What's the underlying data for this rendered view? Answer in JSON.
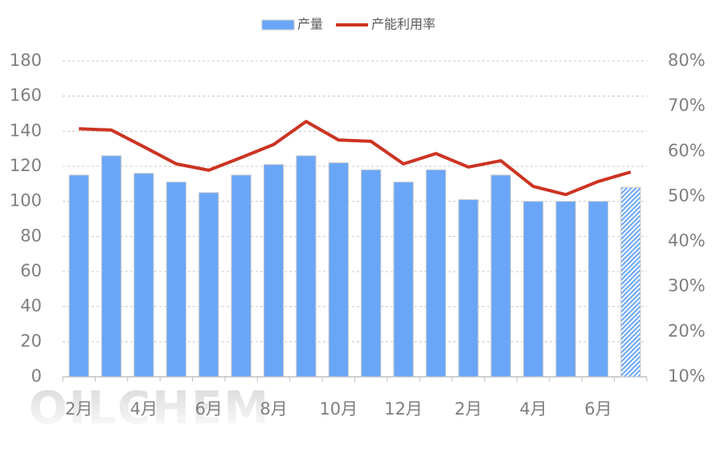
{
  "chart_data": {
    "type": "bar-line",
    "watermark": "OILCHEM",
    "categories": [
      "2月",
      null,
      "4月",
      null,
      "6月",
      null,
      "8月",
      null,
      "10月",
      null,
      "12月",
      null,
      "2月",
      null,
      "4月",
      null,
      "6月",
      null
    ],
    "series": [
      {
        "name": "产量",
        "type": "bar",
        "color": "#6aa6f8",
        "values": [
          115,
          126,
          116,
          111,
          105,
          115,
          121,
          126,
          122,
          118,
          111,
          118,
          101,
          115,
          100,
          100,
          100,
          108
        ],
        "hatched": [
          false,
          false,
          false,
          false,
          false,
          false,
          false,
          false,
          false,
          false,
          false,
          false,
          false,
          false,
          false,
          false,
          false,
          true
        ]
      },
      {
        "name": "产能利用率",
        "type": "line",
        "axis": "y2",
        "color": "#cc3322",
        "values": [
          65.0,
          64.7,
          61.0,
          57.2,
          55.8,
          58.6,
          61.5,
          66.6,
          62.5,
          62.2,
          57.2,
          59.5,
          56.5,
          57.9,
          52.2,
          50.4,
          53.3,
          55.4
        ]
      }
    ],
    "ylim": [
      0,
      180
    ],
    "yticks": [
      0,
      20,
      40,
      60,
      80,
      100,
      120,
      140,
      160,
      180
    ],
    "y2lim": [
      10,
      80
    ],
    "y2ticks": [
      {
        "value": 10,
        "label": "10%"
      },
      {
        "value": 20,
        "label": "20%"
      },
      {
        "value": 30,
        "label": "30%"
      },
      {
        "value": 40,
        "label": "40%"
      },
      {
        "value": 50,
        "label": "50%"
      },
      {
        "value": 60,
        "label": "60%"
      },
      {
        "value": 70,
        "label": "70%"
      },
      {
        "value": 80,
        "label": "80%"
      }
    ],
    "grid": true,
    "legend": "top"
  }
}
